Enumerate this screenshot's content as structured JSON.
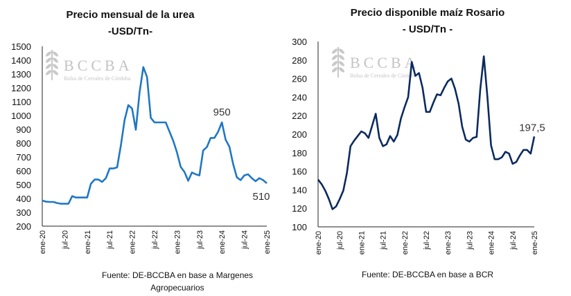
{
  "logo": {
    "name": "BCCBA",
    "subtitle": "Bolsa de Cereales de Córdoba"
  },
  "chart_data": [
    {
      "type": "line",
      "title": [
        "Precio mensual de la urea",
        "-USD/Tn-"
      ],
      "source": [
        "Fuente: DE-BCCBA en base a Margenes",
        "Agropecuarios"
      ],
      "ylim": [
        200,
        1500
      ],
      "yticks": [
        200,
        300,
        400,
        500,
        600,
        700,
        800,
        900,
        1000,
        1100,
        1200,
        1300,
        1400,
        1500
      ],
      "xticks": [
        "ene-20",
        "jul-20",
        "ene-21",
        "jul-21",
        "ene-22",
        "jul-22",
        "ene-23",
        "jul-23",
        "ene-24",
        "jul-24",
        "ene-25"
      ],
      "color": "#1f77c4",
      "grid": false,
      "annotations": [
        {
          "x": "ene-24",
          "text": "950"
        },
        {
          "x": "ene-25",
          "text": "510"
        }
      ],
      "series": [
        {
          "values": [
            385,
            377,
            375,
            375,
            367,
            362,
            362,
            362,
            417,
            407,
            407,
            407,
            407,
            507,
            537,
            537,
            520,
            547,
            617,
            617,
            625,
            783,
            967,
            1075,
            1050,
            897,
            1167,
            1350,
            1278,
            983,
            950,
            950,
            950,
            950,
            883,
            817,
            733,
            628,
            592,
            528,
            588,
            575,
            567,
            747,
            772,
            838,
            838,
            883,
            950,
            825,
            775,
            650,
            553,
            533,
            567,
            575,
            547,
            525,
            547,
            533,
            510
          ]
        }
      ]
    },
    {
      "type": "line",
      "title": [
        "Precio disponible maíz Rosario",
        "- USD/Tn -"
      ],
      "source": [
        "Fuente: DE-BCCBA en base a BCR"
      ],
      "ylim": [
        100,
        300
      ],
      "yticks": [
        100,
        120,
        140,
        160,
        180,
        200,
        220,
        240,
        260,
        280,
        300
      ],
      "xticks": [
        "ene-20",
        "jul-20",
        "ene-21",
        "jul-21",
        "ene-22",
        "jul-22",
        "ene-23",
        "jul-23",
        "ene-24",
        "jul-24",
        "ene-25"
      ],
      "color": "#0b2a5e",
      "grid": false,
      "annotations": [
        {
          "x": "ene-25",
          "text": "197,5"
        }
      ],
      "series": [
        {
          "values": [
            151,
            146,
            139,
            130,
            119,
            122,
            130,
            139,
            158,
            187,
            193,
            198,
            203,
            201,
            196,
            209,
            222,
            196,
            187,
            189,
            198,
            192,
            199,
            217,
            229,
            240,
            278,
            263,
            266,
            250,
            224,
            224,
            234,
            243,
            242,
            250,
            257,
            260,
            249,
            233,
            208,
            194,
            192,
            196,
            197,
            248,
            284,
            240,
            188,
            173,
            173,
            175,
            181,
            179,
            168,
            170,
            177,
            183,
            183,
            179,
            197.5
          ]
        }
      ]
    }
  ]
}
